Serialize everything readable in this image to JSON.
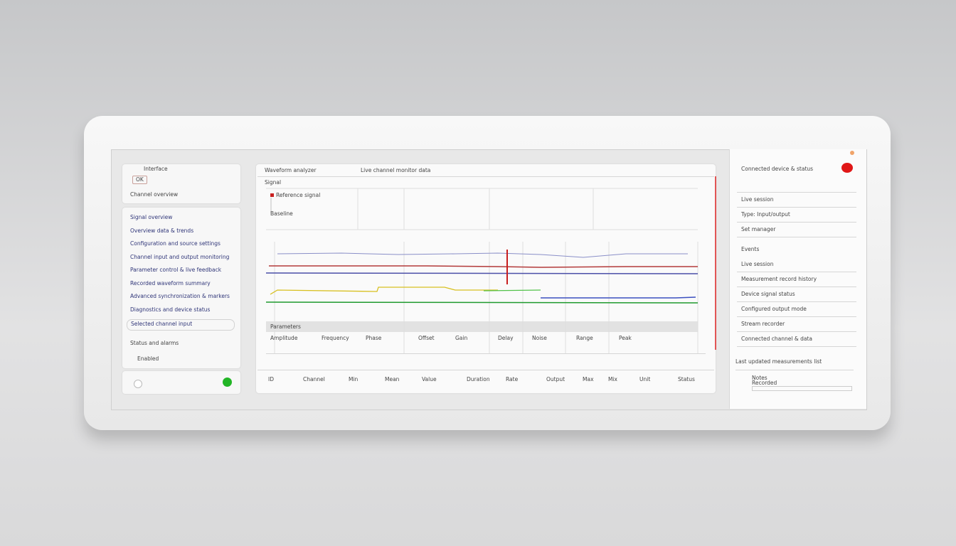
{
  "left": {
    "header": {
      "title": "Interface",
      "button": "OK",
      "subtitle": "Channel overview"
    },
    "items": [
      "Signal overview",
      "Overview data & trends",
      "Configuration and source settings",
      "Channel input and output monitoring",
      "Parameter control & live feedback",
      "Recorded waveform summary",
      "Advanced synchronization & markers",
      "Diagnostics and device status"
    ],
    "selected": "Selected channel input",
    "status": "Status and alarms",
    "option": "Enabled"
  },
  "center": {
    "title": "Waveform analyzer",
    "subtitle": "Live channel monitor data",
    "section": "Signal",
    "legend": "Reference signal",
    "baseline": "Baseline",
    "table_header": "Parameters",
    "columns": [
      "Amplitude",
      "Frequency",
      "Phase",
      "Offset",
      "Gain",
      "Delay",
      "Noise",
      "Range",
      "Peak"
    ],
    "footer": [
      "ID",
      "Channel",
      "Min",
      "Mean",
      "Value",
      "Duration",
      "Rate",
      "Output",
      "Max",
      "Mix",
      "Unit",
      "Status"
    ]
  },
  "right": {
    "title": "Connected device & status",
    "rows": [
      "Live session",
      "Type: Input/output",
      "Set manager"
    ],
    "section": "Events",
    "list": [
      "Live session",
      "Measurement record history",
      "Device signal status",
      "Configured output mode",
      "Stream recorder",
      "Connected channel & data"
    ],
    "note": "Last updated measurements list",
    "field_label": "Notes",
    "field_value": "Recorded"
  }
}
